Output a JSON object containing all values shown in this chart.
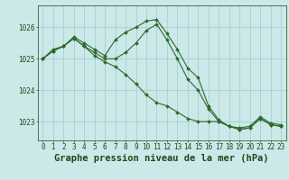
{
  "title": "Graphe pression niveau de la mer (hPa)",
  "xlabel_hours": [
    0,
    1,
    2,
    3,
    4,
    5,
    6,
    7,
    8,
    9,
    10,
    11,
    12,
    13,
    14,
    15,
    16,
    17,
    18,
    19,
    20,
    21,
    22,
    23
  ],
  "line1": [
    1025.0,
    1025.3,
    1025.4,
    1025.7,
    1025.5,
    1025.3,
    1025.1,
    1025.6,
    1025.85,
    1026.0,
    1026.2,
    1026.25,
    1025.8,
    1025.3,
    1024.7,
    1024.4,
    1023.5,
    1023.05,
    1022.85,
    1022.8,
    1022.85,
    1023.15,
    1022.95,
    1022.9
  ],
  "line2": [
    1025.0,
    1025.25,
    1025.4,
    1025.65,
    1025.4,
    1025.2,
    1025.0,
    1025.0,
    1025.2,
    1025.5,
    1025.9,
    1026.1,
    1025.6,
    1025.0,
    1024.35,
    1024.0,
    1023.4,
    1023.0,
    1022.85,
    1022.75,
    1022.8,
    1023.1,
    1022.9,
    1022.85
  ],
  "line3": [
    1025.0,
    1025.25,
    1025.4,
    1025.65,
    1025.4,
    1025.1,
    1024.9,
    1024.75,
    1024.5,
    1024.2,
    1023.85,
    1023.6,
    1023.5,
    1023.3,
    1023.1,
    1023.0,
    1023.0,
    1023.0,
    1022.85,
    1022.75,
    1022.8,
    1023.1,
    1022.9,
    1022.85
  ],
  "line_color": "#2d6a2d",
  "marker": "D",
  "marker_size": 2.0,
  "bg_color": "#cce8e8",
  "grid_color": "#aad4d4",
  "yticks": [
    1023,
    1024,
    1025,
    1026
  ],
  "ylim": [
    1022.4,
    1026.7
  ],
  "xlim": [
    -0.5,
    23.5
  ],
  "title_fontsize": 7.5,
  "tick_fontsize": 5.5,
  "label_color": "#1a4a1a"
}
